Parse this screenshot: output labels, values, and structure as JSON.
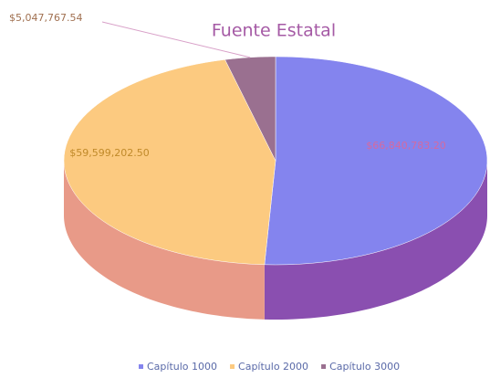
{
  "chart_data": {
    "type": "pie",
    "title": "Fuente Estatal",
    "categories": [
      "Capítulo 1000",
      "Capítulo 2000",
      "Capítulo 3000"
    ],
    "values": [
      66840783.2,
      59599202.5,
      5047767.54
    ],
    "value_labels": [
      "$66,840,783.20",
      "$59,599,202.50",
      "$5,047,767.54"
    ],
    "colors": [
      "#8484ee",
      "#fcca80",
      "#9a7090"
    ],
    "side_colors": [
      "#8a4fb0",
      "#e89a88",
      "#6e4d66"
    ]
  }
}
